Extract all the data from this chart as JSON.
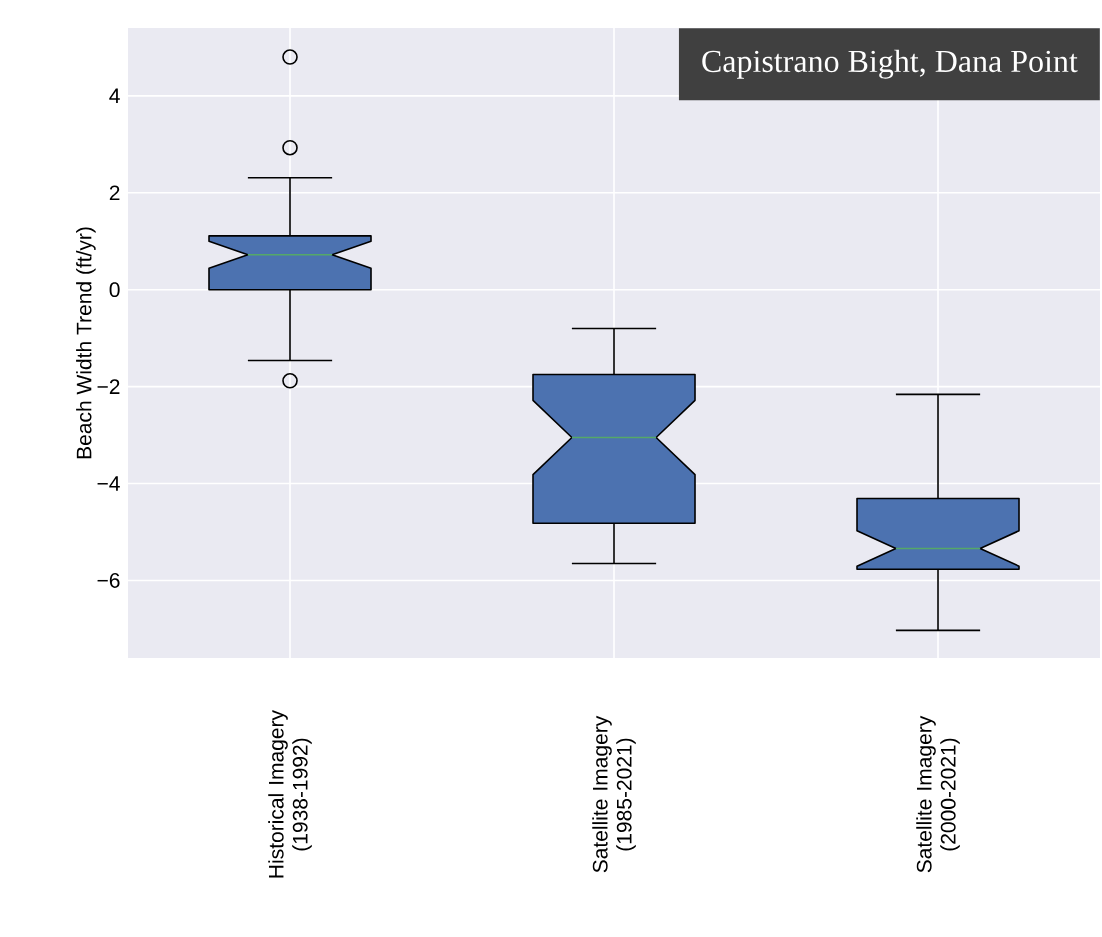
{
  "chart_data": {
    "type": "box",
    "title": "Capistrano Bight, Dana Point",
    "ylabel": "Beach Width Trend (ft/yr)",
    "categories": [
      "Historical Imagery (1938-1992)",
      "Satellite Imagery (1985-2021)",
      "Satellite Imagery (2000-2021)"
    ],
    "boxes": [
      {
        "low": -1.46,
        "q1": 0.0,
        "median": 0.72,
        "q3": 1.11,
        "high": 2.31,
        "outliers": [
          4.8,
          2.93,
          -1.88
        ]
      },
      {
        "low": -5.65,
        "q1": -4.82,
        "median": -3.05,
        "q3": -1.75,
        "high": -0.8
      },
      {
        "low": -7.03,
        "q1": -5.77,
        "median": -5.34,
        "q3": -4.31,
        "high": -2.16
      }
    ],
    "color": "#4c72b0",
    "grid": true,
    "ylim": [
      -7.6,
      5.4
    ],
    "yticks": [
      {
        "value": -6,
        "label": "−6"
      },
      {
        "value": -4,
        "label": "−4"
      },
      {
        "value": -2,
        "label": "−2"
      },
      0,
      2,
      4
    ]
  }
}
